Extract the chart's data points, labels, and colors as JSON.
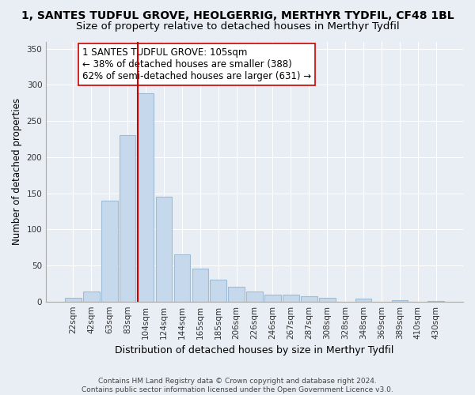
{
  "title": "1, SANTES TUDFUL GROVE, HEOLGERRIG, MERTHYR TYDFIL, CF48 1BL",
  "subtitle": "Size of property relative to detached houses in Merthyr Tydfil",
  "xlabel": "Distribution of detached houses by size in Merthyr Tydfil",
  "ylabel": "Number of detached properties",
  "bar_labels": [
    "22sqm",
    "42sqm",
    "63sqm",
    "83sqm",
    "104sqm",
    "124sqm",
    "144sqm",
    "165sqm",
    "185sqm",
    "206sqm",
    "226sqm",
    "246sqm",
    "267sqm",
    "287sqm",
    "308sqm",
    "328sqm",
    "348sqm",
    "369sqm",
    "389sqm",
    "410sqm",
    "430sqm"
  ],
  "bar_values": [
    5,
    14,
    140,
    230,
    288,
    145,
    65,
    46,
    30,
    20,
    14,
    10,
    10,
    7,
    5,
    0,
    4,
    0,
    2,
    0,
    1
  ],
  "bar_color": "#c6d9ec",
  "bar_edge_color": "#a0bcd4",
  "vline_x_index": 4,
  "vline_color": "#cc0000",
  "annotation_text": "1 SANTES TUDFUL GROVE: 105sqm\n← 38% of detached houses are smaller (388)\n62% of semi-detached houses are larger (631) →",
  "annotation_box_facecolor": "#ffffff",
  "annotation_box_edgecolor": "#cc0000",
  "ylim": [
    0,
    360
  ],
  "yticks": [
    0,
    50,
    100,
    150,
    200,
    250,
    300,
    350
  ],
  "footer": "Contains HM Land Registry data © Crown copyright and database right 2024.\nContains public sector information licensed under the Open Government Licence v3.0.",
  "background_color": "#e8eef4",
  "plot_background": "#e8eef4",
  "grid_color": "#ffffff",
  "title_fontsize": 10,
  "subtitle_fontsize": 9.5,
  "xlabel_fontsize": 9,
  "ylabel_fontsize": 8.5,
  "tick_fontsize": 7.5,
  "annotation_fontsize": 8.5,
  "footer_fontsize": 6.5
}
